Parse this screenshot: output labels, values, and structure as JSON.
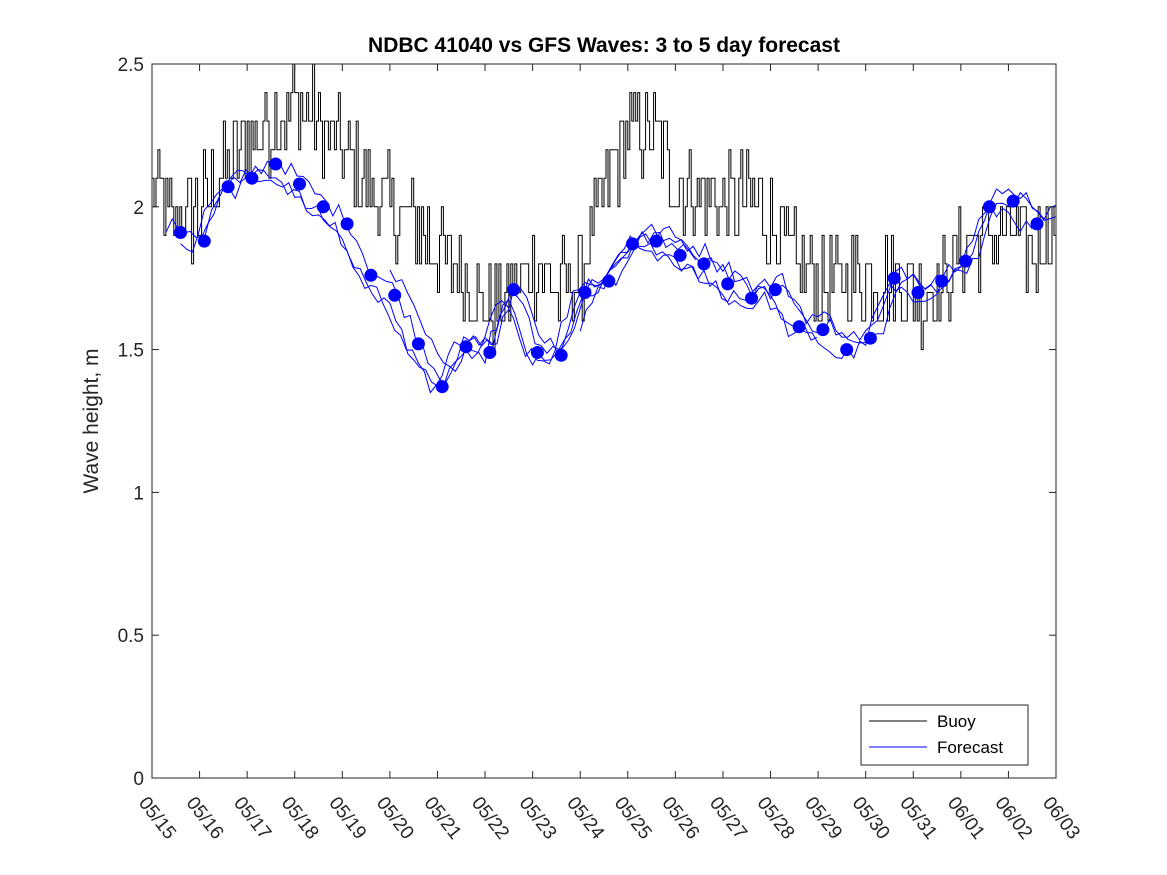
{
  "chart_data": {
    "type": "line",
    "title": "NDBC 41040 vs GFS Waves: 3 to 5 day forecast",
    "xlabel": "",
    "ylabel": "Wave height, m",
    "ylim": [
      0,
      2.5
    ],
    "xlim_days": [
      0,
      19
    ],
    "y_ticks": [
      0,
      0.5,
      1,
      1.5,
      2,
      2.5
    ],
    "y_tick_labels": [
      "0",
      "0.5",
      "1",
      "1.5",
      "2",
      "2.5"
    ],
    "x_tick_labels": [
      "05/15",
      "05/16",
      "05/17",
      "05/18",
      "05/19",
      "05/20",
      "05/21",
      "05/22",
      "05/23",
      "05/24",
      "05/25",
      "05/26",
      "05/27",
      "05/28",
      "05/29",
      "05/30",
      "05/31",
      "06/01",
      "06/02",
      "06/03"
    ],
    "legend": {
      "position": "bottom-right",
      "entries": [
        "Buoy",
        "Forecast"
      ]
    },
    "colors": {
      "buoy": "#000000",
      "forecast": "#0000ff",
      "markers": "#0000ff",
      "axes": "#262626"
    },
    "buoy_keypoints": [
      {
        "t": 0.0,
        "v": 2.1
      },
      {
        "t": 0.3,
        "v": 1.95
      },
      {
        "t": 0.8,
        "v": 1.95
      },
      {
        "t": 1.2,
        "v": 2.05
      },
      {
        "t": 1.6,
        "v": 2.15
      },
      {
        "t": 2.0,
        "v": 2.25
      },
      {
        "t": 2.5,
        "v": 2.3
      },
      {
        "t": 3.0,
        "v": 2.35
      },
      {
        "t": 3.5,
        "v": 2.3
      },
      {
        "t": 4.0,
        "v": 2.2
      },
      {
        "t": 4.5,
        "v": 2.05
      },
      {
        "t": 5.0,
        "v": 2.0
      },
      {
        "t": 5.5,
        "v": 1.95
      },
      {
        "t": 6.0,
        "v": 1.85
      },
      {
        "t": 6.5,
        "v": 1.75
      },
      {
        "t": 7.0,
        "v": 1.65
      },
      {
        "t": 7.5,
        "v": 1.7
      },
      {
        "t": 8.0,
        "v": 1.8
      },
      {
        "t": 8.5,
        "v": 1.7
      },
      {
        "t": 9.0,
        "v": 1.75
      },
      {
        "t": 9.3,
        "v": 1.95
      },
      {
        "t": 9.7,
        "v": 2.15
      },
      {
        "t": 10.0,
        "v": 2.25
      },
      {
        "t": 10.5,
        "v": 2.25
      },
      {
        "t": 11.0,
        "v": 2.1
      },
      {
        "t": 11.5,
        "v": 2.05
      },
      {
        "t": 12.0,
        "v": 2.0
      },
      {
        "t": 12.5,
        "v": 2.05
      },
      {
        "t": 13.0,
        "v": 1.95
      },
      {
        "t": 13.5,
        "v": 1.8
      },
      {
        "t": 14.0,
        "v": 1.75
      },
      {
        "t": 14.5,
        "v": 1.75
      },
      {
        "t": 15.0,
        "v": 1.75
      },
      {
        "t": 15.5,
        "v": 1.75
      },
      {
        "t": 16.0,
        "v": 1.7
      },
      {
        "t": 16.5,
        "v": 1.7
      },
      {
        "t": 17.0,
        "v": 1.85
      },
      {
        "t": 17.5,
        "v": 1.9
      },
      {
        "t": 18.0,
        "v": 1.9
      },
      {
        "t": 18.5,
        "v": 1.85
      },
      {
        "t": 19.0,
        "v": 1.95
      }
    ],
    "forecast_points": [
      {
        "t": 0.6,
        "v": 1.91
      },
      {
        "t": 1.1,
        "v": 1.88
      },
      {
        "t": 1.6,
        "v": 2.07
      },
      {
        "t": 2.1,
        "v": 2.1
      },
      {
        "t": 2.6,
        "v": 2.15
      },
      {
        "t": 3.1,
        "v": 2.08
      },
      {
        "t": 3.6,
        "v": 2.0
      },
      {
        "t": 4.1,
        "v": 1.94
      },
      {
        "t": 4.6,
        "v": 1.76
      },
      {
        "t": 5.1,
        "v": 1.69
      },
      {
        "t": 5.6,
        "v": 1.52
      },
      {
        "t": 6.1,
        "v": 1.37
      },
      {
        "t": 6.6,
        "v": 1.51
      },
      {
        "t": 7.1,
        "v": 1.49
      },
      {
        "t": 7.6,
        "v": 1.71
      },
      {
        "t": 8.1,
        "v": 1.49
      },
      {
        "t": 8.6,
        "v": 1.48
      },
      {
        "t": 9.1,
        "v": 1.7
      },
      {
        "t": 9.6,
        "v": 1.74
      },
      {
        "t": 10.1,
        "v": 1.87
      },
      {
        "t": 10.6,
        "v": 1.88
      },
      {
        "t": 11.1,
        "v": 1.83
      },
      {
        "t": 11.6,
        "v": 1.8
      },
      {
        "t": 12.1,
        "v": 1.73
      },
      {
        "t": 12.6,
        "v": 1.68
      },
      {
        "t": 13.1,
        "v": 1.71
      },
      {
        "t": 13.6,
        "v": 1.58
      },
      {
        "t": 14.1,
        "v": 1.57
      },
      {
        "t": 14.6,
        "v": 1.5
      },
      {
        "t": 15.1,
        "v": 1.54
      },
      {
        "t": 15.6,
        "v": 1.75
      },
      {
        "t": 16.1,
        "v": 1.7
      },
      {
        "t": 16.6,
        "v": 1.74
      },
      {
        "t": 17.1,
        "v": 1.81
      },
      {
        "t": 17.6,
        "v": 2.0
      },
      {
        "t": 18.1,
        "v": 2.02
      },
      {
        "t": 18.6,
        "v": 1.94
      }
    ]
  }
}
